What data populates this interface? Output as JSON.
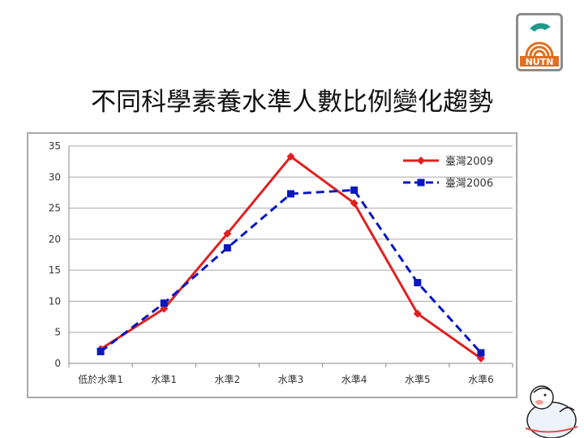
{
  "slide": {
    "title": "不同科學素養水準人數比例變化趨勢",
    "logo_text": "NUTN"
  },
  "chart_data": {
    "type": "line",
    "title": "",
    "xlabel": "",
    "ylabel": "",
    "categories": [
      "低於水準1",
      "水準1",
      "水準2",
      "水準3",
      "水準4",
      "水準5",
      "水準6"
    ],
    "series": [
      {
        "name": "臺灣2009",
        "values": [
          2.3,
          8.8,
          20.9,
          33.3,
          25.8,
          8.0,
          0.8
        ],
        "color": "#e02020",
        "dash": "solid",
        "marker": "diamond"
      },
      {
        "name": "臺灣2006",
        "values": [
          1.9,
          9.7,
          18.6,
          27.3,
          27.9,
          13.0,
          1.7
        ],
        "color": "#0a18c0",
        "dash": "dashed",
        "marker": "square"
      }
    ],
    "ylim": [
      0,
      35
    ],
    "yticks": [
      0,
      5,
      10,
      15,
      20,
      25,
      30,
      35
    ],
    "grid": true,
    "legend_position": "top-right"
  }
}
